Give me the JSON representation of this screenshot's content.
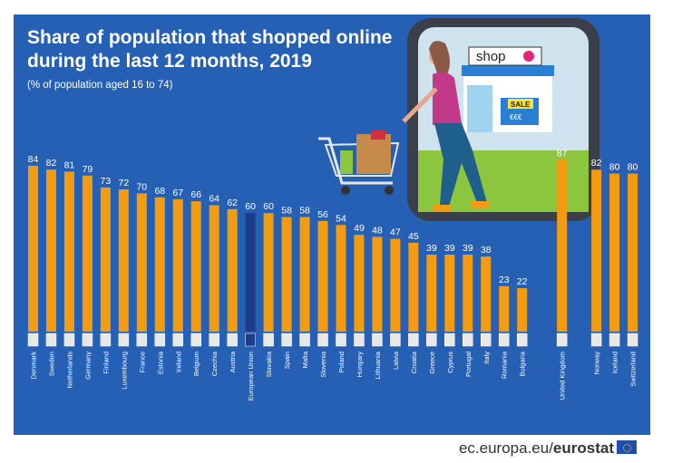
{
  "header": {
    "title_line1": "Share of population that shopped online",
    "title_line2": "during the last 12 months, 2019",
    "subtitle": "(% of population aged 16 to 74)"
  },
  "illustration": {
    "shop_sign": "shop",
    "sale_sign": "SALE",
    "price_sign": "€€€"
  },
  "footer": {
    "source_prefix": "ec.europa.eu/",
    "source_brand": "eurostat"
  },
  "colors": {
    "background": "#2560b4",
    "bar": "#f39c12",
    "bar_eu": "#1f3c88"
  },
  "chart_data": {
    "type": "bar",
    "title": "Share of population that shopped online during the last 12 months, 2019",
    "subtitle": "(% of population aged 16 to 74)",
    "xlabel": "",
    "ylabel": "",
    "ylim": [
      0,
      100
    ],
    "grid": false,
    "highlight": "European Union",
    "categories": [
      "Denmark",
      "Sweden",
      "Netherlands",
      "Germany",
      "Finland",
      "Luxembourg",
      "France",
      "Estonia",
      "Ireland",
      "Belgium",
      "Czechia",
      "Austria",
      "European Union",
      "Slovakia",
      "Spain",
      "Malta",
      "Slovenia",
      "Poland",
      "Hungary",
      "Lithuania",
      "Latvia",
      "Croatia",
      "Greece",
      "Cyprus",
      "Portugal",
      "Italy",
      "Romania",
      "Bulgaria",
      "United Kingdom",
      "Norway",
      "Iceland",
      "Switzerland"
    ],
    "values": [
      84,
      82,
      81,
      79,
      73,
      72,
      70,
      68,
      67,
      66,
      64,
      62,
      60,
      60,
      58,
      58,
      56,
      54,
      49,
      48,
      47,
      45,
      39,
      39,
      39,
      38,
      23,
      22,
      87,
      82,
      80,
      80
    ]
  }
}
